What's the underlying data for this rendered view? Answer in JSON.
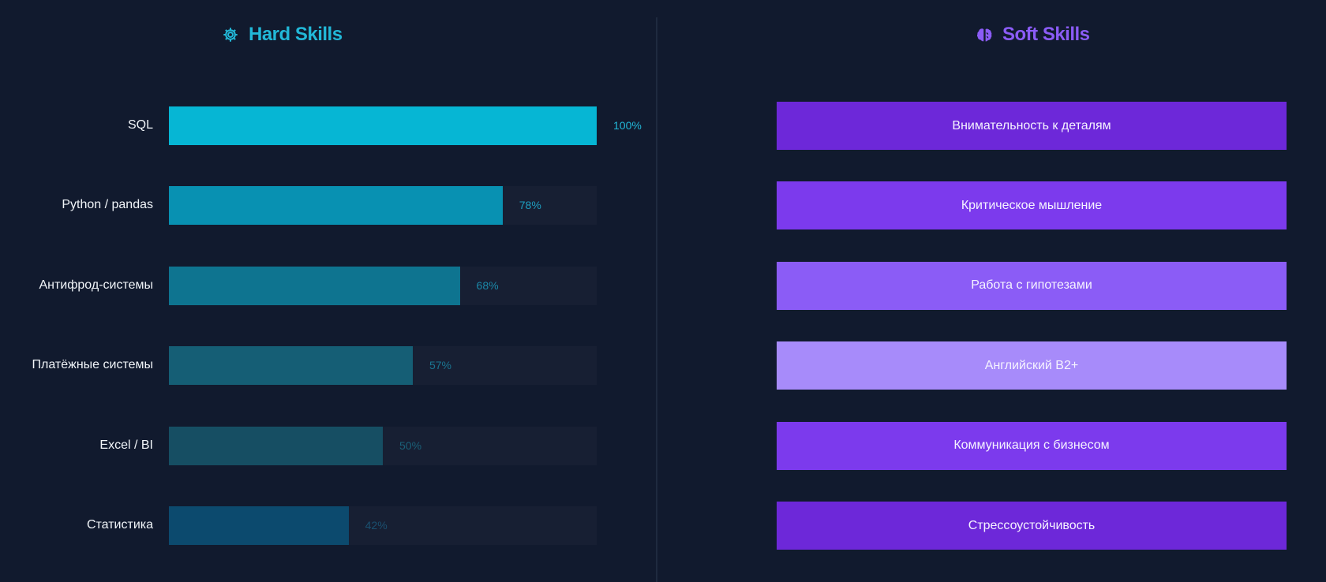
{
  "hard_skills": {
    "title": "Hard Skills",
    "icon": "gear-icon",
    "title_color": "#22b8d8"
  },
  "soft_skills": {
    "title": "Soft Skills",
    "icon": "brain-icon",
    "title_color": "#8b5cf6",
    "items": [
      {
        "label": "Внимательность к деталям",
        "color": "#6d28d9"
      },
      {
        "label": "Критическое мышление",
        "color": "#7c3aed"
      },
      {
        "label": "Работа с гипотезами",
        "color": "#8b5cf6"
      },
      {
        "label": "Английский B2+",
        "color": "#a78bfa"
      },
      {
        "label": "Коммуникация с бизнесом",
        "color": "#7c3aed"
      },
      {
        "label": "Стрессоустойчивость",
        "color": "#6d28d9"
      }
    ]
  },
  "chart_data": {
    "type": "bar",
    "orientation": "horizontal",
    "title": "Hard Skills",
    "categories": [
      "SQL",
      "Python / pandas",
      "Антифрод-системы",
      "Платёжные системы",
      "Excel / BI",
      "Статистика"
    ],
    "values": [
      100,
      78,
      68,
      57,
      50,
      42
    ],
    "value_labels": [
      "100%",
      "78%",
      "68%",
      "57%",
      "50%",
      "42%"
    ],
    "xlim": [
      0,
      100
    ],
    "bar_colors": [
      "#06b6d4",
      "#0891b2",
      "#0e7490",
      "#155e75",
      "#164e63",
      "#0c4a6e"
    ],
    "label_colors": [
      "#22b8d8",
      "#1e9ec0",
      "#1b88a8",
      "#1a7490",
      "#1a6078",
      "#1a5070"
    ]
  }
}
